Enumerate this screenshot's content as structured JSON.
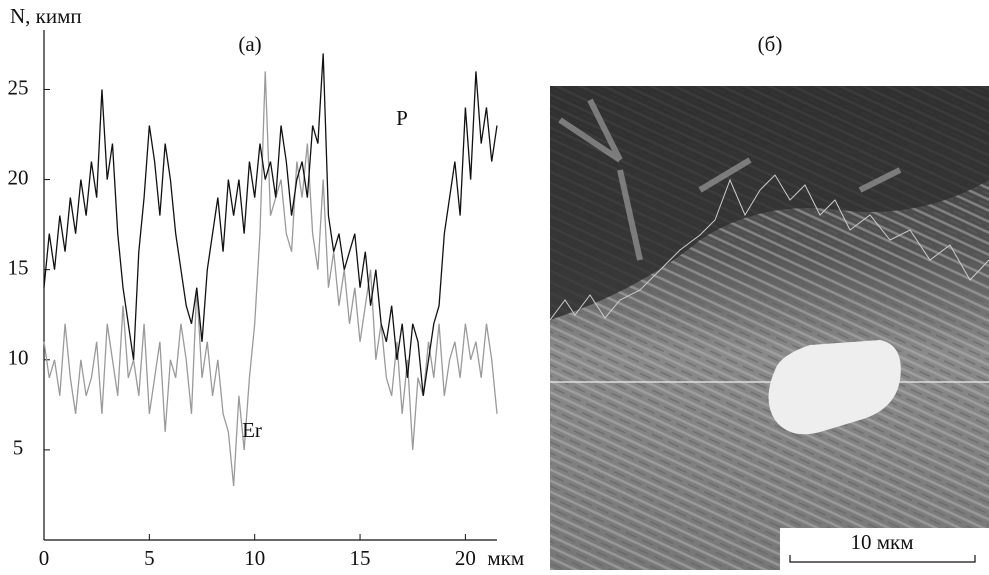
{
  "chart_data": {
    "type": "line",
    "y_label": "N, кимп",
    "x_label": "мкм",
    "panel_a": "(а)",
    "panel_b": "(б)",
    "scale_bar": "10 мкм",
    "x": [
      0,
      0.25,
      0.5,
      0.75,
      1,
      1.25,
      1.5,
      1.75,
      2,
      2.25,
      2.5,
      2.75,
      3,
      3.25,
      3.5,
      3.75,
      4,
      4.25,
      4.5,
      4.75,
      5,
      5.25,
      5.5,
      5.75,
      6,
      6.25,
      6.5,
      6.75,
      7,
      7.25,
      7.5,
      7.75,
      8,
      8.25,
      8.5,
      8.75,
      9,
      9.25,
      9.5,
      9.75,
      10,
      10.25,
      10.5,
      10.75,
      11,
      11.25,
      11.5,
      11.75,
      12,
      12.25,
      12.5,
      12.75,
      13,
      13.25,
      13.5,
      13.75,
      14,
      14.25,
      14.5,
      14.75,
      15,
      15.25,
      15.5,
      15.75,
      16,
      16.25,
      16.5,
      16.75,
      17,
      17.25,
      17.5,
      17.75,
      18,
      18.25,
      18.5,
      18.75,
      19,
      19.25,
      19.5,
      19.75,
      20,
      20.25,
      20.5,
      20.75,
      21,
      21.25,
      21.5
    ],
    "series": [
      {
        "name": "P",
        "color": "#111111",
        "values": [
          14,
          17,
          15,
          18,
          16,
          19,
          17,
          20,
          18,
          21,
          19,
          25,
          20,
          22,
          17,
          14,
          12,
          10,
          16,
          19,
          23,
          21,
          18,
          22,
          20,
          17,
          15,
          13,
          12,
          14,
          11,
          15,
          17,
          19,
          16,
          20,
          18,
          20,
          17,
          21,
          19,
          22,
          20,
          21,
          19,
          23,
          21,
          18,
          20,
          21,
          19,
          23,
          22,
          27,
          18,
          16,
          17,
          15,
          16,
          17,
          14,
          16,
          13,
          15,
          12,
          11,
          13,
          10,
          12,
          9,
          12,
          11,
          8,
          10,
          12,
          13,
          17,
          19,
          21,
          18,
          24,
          20,
          26,
          22,
          24,
          21,
          23
        ]
      },
      {
        "name": "Er",
        "color": "#9a9a9a",
        "values": [
          11,
          9,
          10,
          8,
          12,
          9,
          7,
          10,
          8,
          9,
          11,
          7,
          12,
          10,
          8,
          13,
          9,
          10,
          8,
          12,
          7,
          9,
          11,
          6,
          10,
          9,
          12,
          10,
          7,
          14,
          9,
          11,
          8,
          10,
          7,
          6,
          3,
          8,
          5,
          9,
          12,
          17,
          26,
          18,
          19,
          20,
          17,
          16,
          21,
          19,
          22,
          17,
          15,
          20,
          14,
          16,
          13,
          15,
          12,
          14,
          11,
          13,
          15,
          10,
          12,
          9,
          8,
          11,
          7,
          10,
          5,
          9,
          8,
          11,
          9,
          12,
          8,
          10,
          11,
          9,
          12,
          10,
          11,
          9,
          12,
          10,
          7
        ]
      }
    ],
    "xlim": [
      0,
      21.5
    ],
    "ylim": [
      0,
      28.3
    ],
    "xticks": [
      0,
      5,
      10,
      15,
      20
    ],
    "yticks": [
      5,
      10,
      15,
      20,
      25
    ]
  }
}
